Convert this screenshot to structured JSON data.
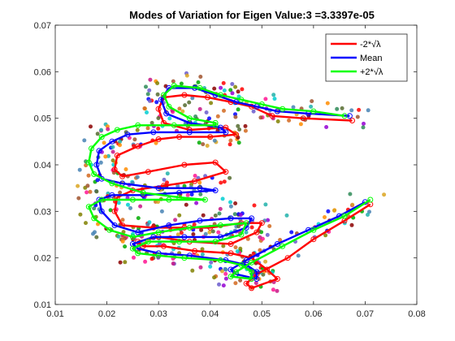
{
  "chart_data": {
    "type": "line",
    "title": "Modes of Variation for Eigen Value:3 =3.3397e-05",
    "xlabel": "",
    "ylabel": "",
    "xlim": [
      0.01,
      0.08
    ],
    "ylim": [
      0.01,
      0.07
    ],
    "x_ticks": [
      "0.01",
      "0.02",
      "0.03",
      "0.04",
      "0.05",
      "0.06",
      "0.07",
      "0.08"
    ],
    "y_ticks": [
      "0.01",
      "0.02",
      "0.03",
      "0.04",
      "0.05",
      "0.06",
      "0.07"
    ],
    "grid": false,
    "legend_position": "top-right",
    "legend": [
      "-2*√λ",
      "Mean",
      "+2*√λ"
    ],
    "series": [
      {
        "name": "-2*√λ",
        "color": "#ff0000",
        "x": [
          0.0675,
          0.058,
          0.052,
          0.048,
          0.044,
          0.0395,
          0.035,
          0.031,
          0.03,
          0.031,
          0.036,
          0.043,
          0.045,
          0.04,
          0.034,
          0.03,
          0.026,
          0.022,
          0.0215,
          0.023,
          0.028,
          0.035,
          0.041,
          0.043,
          0.037,
          0.031,
          0.025,
          0.022,
          0.0215,
          0.023,
          0.029,
          0.035,
          0.04,
          0.046,
          0.05,
          0.049,
          0.044,
          0.036,
          0.03,
          0.026,
          0.027,
          0.031,
          0.037,
          0.044,
          0.048,
          0.051,
          0.053,
          0.048,
          0.047,
          0.049,
          0.055,
          0.06,
          0.066,
          0.071
        ],
        "y": [
          0.0495,
          0.05,
          0.0505,
          0.0525,
          0.0535,
          0.0545,
          0.055,
          0.0545,
          0.052,
          0.049,
          0.0475,
          0.048,
          0.0465,
          0.046,
          0.046,
          0.0455,
          0.044,
          0.042,
          0.039,
          0.0375,
          0.0385,
          0.04,
          0.0405,
          0.0385,
          0.0365,
          0.0355,
          0.0345,
          0.033,
          0.03,
          0.027,
          0.0265,
          0.0265,
          0.0265,
          0.0275,
          0.0275,
          0.0255,
          0.023,
          0.0235,
          0.0245,
          0.0235,
          0.0225,
          0.0225,
          0.0215,
          0.021,
          0.02,
          0.0175,
          0.0155,
          0.0135,
          0.0145,
          0.0165,
          0.02,
          0.024,
          0.028,
          0.0315
        ]
      },
      {
        "name": "Mean",
        "color": "#0000ff",
        "x": [
          0.067,
          0.059,
          0.053,
          0.049,
          0.045,
          0.041,
          0.037,
          0.032,
          0.0305,
          0.0315,
          0.036,
          0.042,
          0.043,
          0.036,
          0.029,
          0.024,
          0.021,
          0.0185,
          0.018,
          0.019,
          0.023,
          0.03,
          0.038,
          0.041,
          0.034,
          0.027,
          0.021,
          0.0185,
          0.019,
          0.0215,
          0.026,
          0.032,
          0.038,
          0.044,
          0.048,
          0.047,
          0.042,
          0.035,
          0.029,
          0.025,
          0.026,
          0.03,
          0.036,
          0.043,
          0.047,
          0.049,
          0.049,
          0.045,
          0.044,
          0.047,
          0.053,
          0.059,
          0.065,
          0.07
        ],
        "y": [
          0.0505,
          0.051,
          0.0515,
          0.0525,
          0.0535,
          0.055,
          0.0565,
          0.0565,
          0.054,
          0.051,
          0.049,
          0.048,
          0.047,
          0.047,
          0.047,
          0.0465,
          0.045,
          0.043,
          0.04,
          0.037,
          0.036,
          0.035,
          0.035,
          0.0345,
          0.034,
          0.0335,
          0.0335,
          0.0325,
          0.03,
          0.027,
          0.0255,
          0.027,
          0.028,
          0.0285,
          0.0285,
          0.0265,
          0.0245,
          0.0245,
          0.0245,
          0.023,
          0.022,
          0.021,
          0.0205,
          0.0195,
          0.0185,
          0.017,
          0.0155,
          0.0165,
          0.0175,
          0.0195,
          0.023,
          0.026,
          0.029,
          0.032
        ]
      },
      {
        "name": "+2*√λ",
        "color": "#00ff00",
        "x": [
          0.066,
          0.06,
          0.054,
          0.05,
          0.046,
          0.042,
          0.038,
          0.033,
          0.031,
          0.032,
          0.036,
          0.041,
          0.041,
          0.033,
          0.026,
          0.022,
          0.019,
          0.017,
          0.0165,
          0.0175,
          0.021,
          0.027,
          0.034,
          0.039,
          0.032,
          0.025,
          0.019,
          0.0165,
          0.0175,
          0.0205,
          0.025,
          0.03,
          0.036,
          0.042,
          0.047,
          0.046,
          0.041,
          0.034,
          0.028,
          0.025,
          0.026,
          0.03,
          0.035,
          0.042,
          0.046,
          0.048,
          0.048,
          0.044,
          0.045,
          0.048,
          0.054,
          0.06,
          0.066,
          0.071
        ],
        "y": [
          0.0505,
          0.0515,
          0.052,
          0.053,
          0.054,
          0.055,
          0.0565,
          0.057,
          0.055,
          0.0525,
          0.05,
          0.049,
          0.0485,
          0.0485,
          0.0485,
          0.0475,
          0.046,
          0.0435,
          0.0405,
          0.038,
          0.036,
          0.034,
          0.033,
          0.0325,
          0.0325,
          0.0325,
          0.0325,
          0.031,
          0.0285,
          0.026,
          0.0245,
          0.0255,
          0.0265,
          0.027,
          0.0275,
          0.025,
          0.0235,
          0.0235,
          0.0235,
          0.022,
          0.021,
          0.0205,
          0.02,
          0.0195,
          0.0185,
          0.017,
          0.0155,
          0.016,
          0.017,
          0.019,
          0.0225,
          0.026,
          0.029,
          0.0325
        ]
      }
    ]
  }
}
